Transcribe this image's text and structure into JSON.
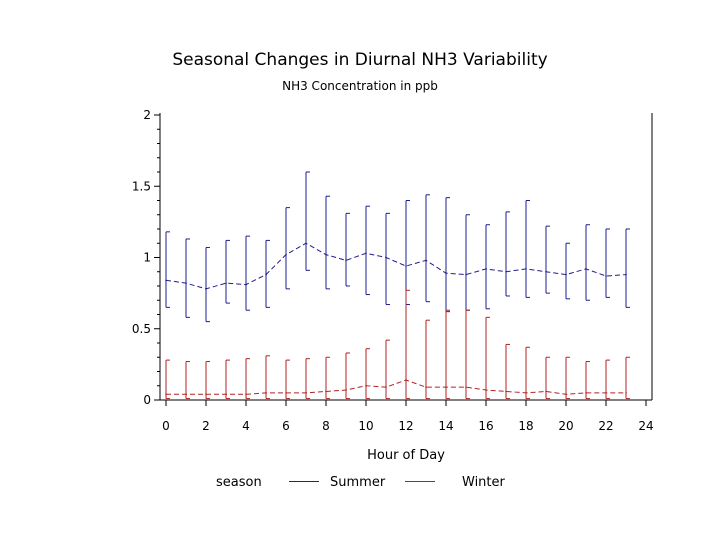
{
  "chart_data": {
    "type": "line",
    "title": "Seasonal Changes in Diurnal NH3 Variability",
    "subtitle": "NH3 Concentration in ppb",
    "xlabel": "Hour of Day",
    "ylabel": "",
    "xlim": [
      0,
      24
    ],
    "ylim": [
      0,
      2
    ],
    "xticks": [
      "0",
      "2",
      "4",
      "6",
      "8",
      "10",
      "12",
      "14",
      "16",
      "18",
      "20",
      "22",
      "24"
    ],
    "yticks": [
      "0",
      "0.5",
      "1",
      "1.5",
      "2"
    ],
    "legend_title": "season",
    "colors": {
      "Summer": "#1f1f8f",
      "Winter": "#b22222"
    },
    "series": [
      {
        "name": "Summer",
        "hours": [
          0,
          1,
          2,
          3,
          4,
          5,
          6,
          7,
          8,
          9,
          10,
          11,
          12,
          13,
          14,
          15,
          16,
          17,
          18,
          19,
          20,
          21,
          22,
          23
        ],
        "mean": [
          0.84,
          0.82,
          0.78,
          0.82,
          0.81,
          0.88,
          1.02,
          1.1,
          1.02,
          0.98,
          1.03,
          1.0,
          0.94,
          0.98,
          0.89,
          0.88,
          0.92,
          0.9,
          0.92,
          0.9,
          0.88,
          0.92,
          0.87,
          0.88
        ],
        "high": [
          1.18,
          1.13,
          1.07,
          1.12,
          1.15,
          1.12,
          1.35,
          1.6,
          1.43,
          1.31,
          1.36,
          1.31,
          1.4,
          1.44,
          1.42,
          1.3,
          1.23,
          1.32,
          1.4,
          1.22,
          1.1,
          1.23,
          1.2,
          1.2
        ],
        "low": [
          0.65,
          0.58,
          0.55,
          0.68,
          0.63,
          0.65,
          0.78,
          0.91,
          0.78,
          0.8,
          0.74,
          0.67,
          0.67,
          0.69,
          0.62,
          0.63,
          0.64,
          0.73,
          0.72,
          0.75,
          0.71,
          0.7,
          0.72,
          0.65
        ]
      },
      {
        "name": "Winter",
        "hours": [
          0,
          1,
          2,
          3,
          4,
          5,
          6,
          7,
          8,
          9,
          10,
          11,
          12,
          13,
          14,
          15,
          16,
          17,
          18,
          19,
          20,
          21,
          22,
          23
        ],
        "mean": [
          0.04,
          0.04,
          0.04,
          0.04,
          0.04,
          0.05,
          0.05,
          0.05,
          0.06,
          0.07,
          0.1,
          0.09,
          0.14,
          0.09,
          0.09,
          0.09,
          0.07,
          0.06,
          0.05,
          0.06,
          0.04,
          0.05,
          0.05,
          0.05
        ],
        "high": [
          0.28,
          0.27,
          0.27,
          0.28,
          0.29,
          0.31,
          0.28,
          0.29,
          0.3,
          0.33,
          0.36,
          0.42,
          0.77,
          0.56,
          0.63,
          0.63,
          0.58,
          0.39,
          0.37,
          0.3,
          0.3,
          0.27,
          0.28,
          0.3
        ],
        "low": [
          0.01,
          0.01,
          0.01,
          0.01,
          0.01,
          0.01,
          0.01,
          0.01,
          0.01,
          0.01,
          0.01,
          0.01,
          0.01,
          0.01,
          0.01,
          0.01,
          0.01,
          0.01,
          0.01,
          0.01,
          0.01,
          0.01,
          0.01,
          0.01
        ]
      }
    ]
  }
}
